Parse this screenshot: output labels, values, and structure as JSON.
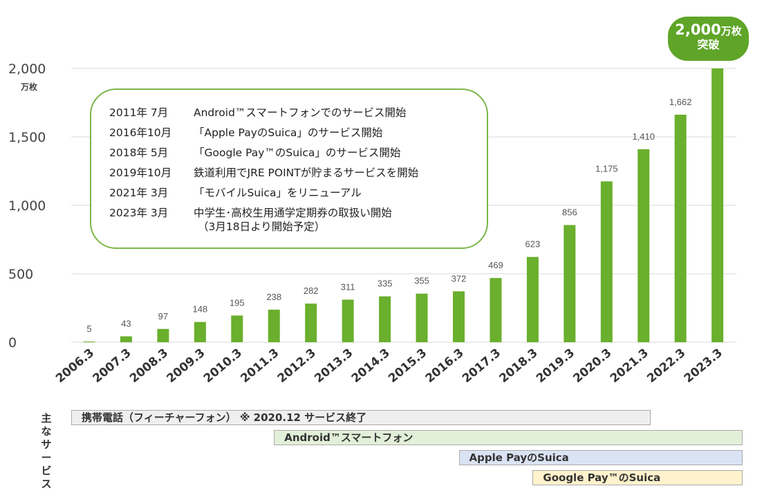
{
  "chart_data": {
    "type": "bar",
    "title": "",
    "xlabel": "",
    "ylabel": "万枚",
    "ylim": [
      0,
      2000
    ],
    "yticks": [
      0,
      500,
      1000,
      1500,
      2000
    ],
    "ytick_labels": [
      "0",
      "500",
      "1,000",
      "1,500",
      "2,000"
    ],
    "grid": true,
    "bar_color": "#6aaf2d",
    "categories": [
      "2006.3",
      "2007.3",
      "2008.3",
      "2009.3",
      "2010.3",
      "2011.3",
      "2012.3",
      "2013.3",
      "2014.3",
      "2015.3",
      "2016.3",
      "2017.3",
      "2018.3",
      "2019.3",
      "2020.3",
      "2021.3",
      "2022.3",
      "2023.3"
    ],
    "values": [
      5,
      43,
      97,
      148,
      195,
      238,
      282,
      311,
      335,
      355,
      372,
      469,
      623,
      856,
      1175,
      1410,
      1662,
      2000
    ],
    "data_labels": [
      "5",
      "43",
      "97",
      "148",
      "195",
      "238",
      "282",
      "311",
      "335",
      "355",
      "372",
      "469",
      "623",
      "856",
      "1,175",
      "1,410",
      "1,662",
      ""
    ],
    "callout": {
      "value": "2,000",
      "unit": "万枚",
      "text": "突破",
      "color": "#5fa528"
    }
  },
  "milestones": [
    {
      "date": "2011年 7月",
      "text": "Android™スマートフォンでのサービス開始"
    },
    {
      "date": "2016年10月",
      "text": "「Apple PayのSuica」のサービス開始"
    },
    {
      "date": "2018年 5月",
      "text": "「Google Pay™のSuica」のサービス開始"
    },
    {
      "date": "2019年10月",
      "text": "鉄道利用でJRE POINTが貯まるサービスを開始"
    },
    {
      "date": "2021年 3月",
      "text": "「モバイルSuica」をリニューアル"
    },
    {
      "date": "2023年 3月",
      "text": "中学生･高校生用通学定期券の取扱い開始"
    }
  ],
  "milestone_note": "（3月18日より開始予定）",
  "services": {
    "title": "主なサービス",
    "bars": [
      {
        "label": "携帯電話（フィーチャーフォン） ※ 2020.12 サービス終了",
        "color": "#efefef",
        "from_index": 0,
        "to_index": 15.5
      },
      {
        "label": "Android™スマートフォン",
        "color": "#e2efd9",
        "from_index": 5.5,
        "to_index": 18
      },
      {
        "label": "Apple PayのSuica",
        "color": "#dae3f3",
        "from_index": 10.5,
        "to_index": 18
      },
      {
        "label": "Google Pay™のSuica",
        "color": "#fff2cc",
        "from_index": 12.5,
        "to_index": 18
      }
    ]
  }
}
